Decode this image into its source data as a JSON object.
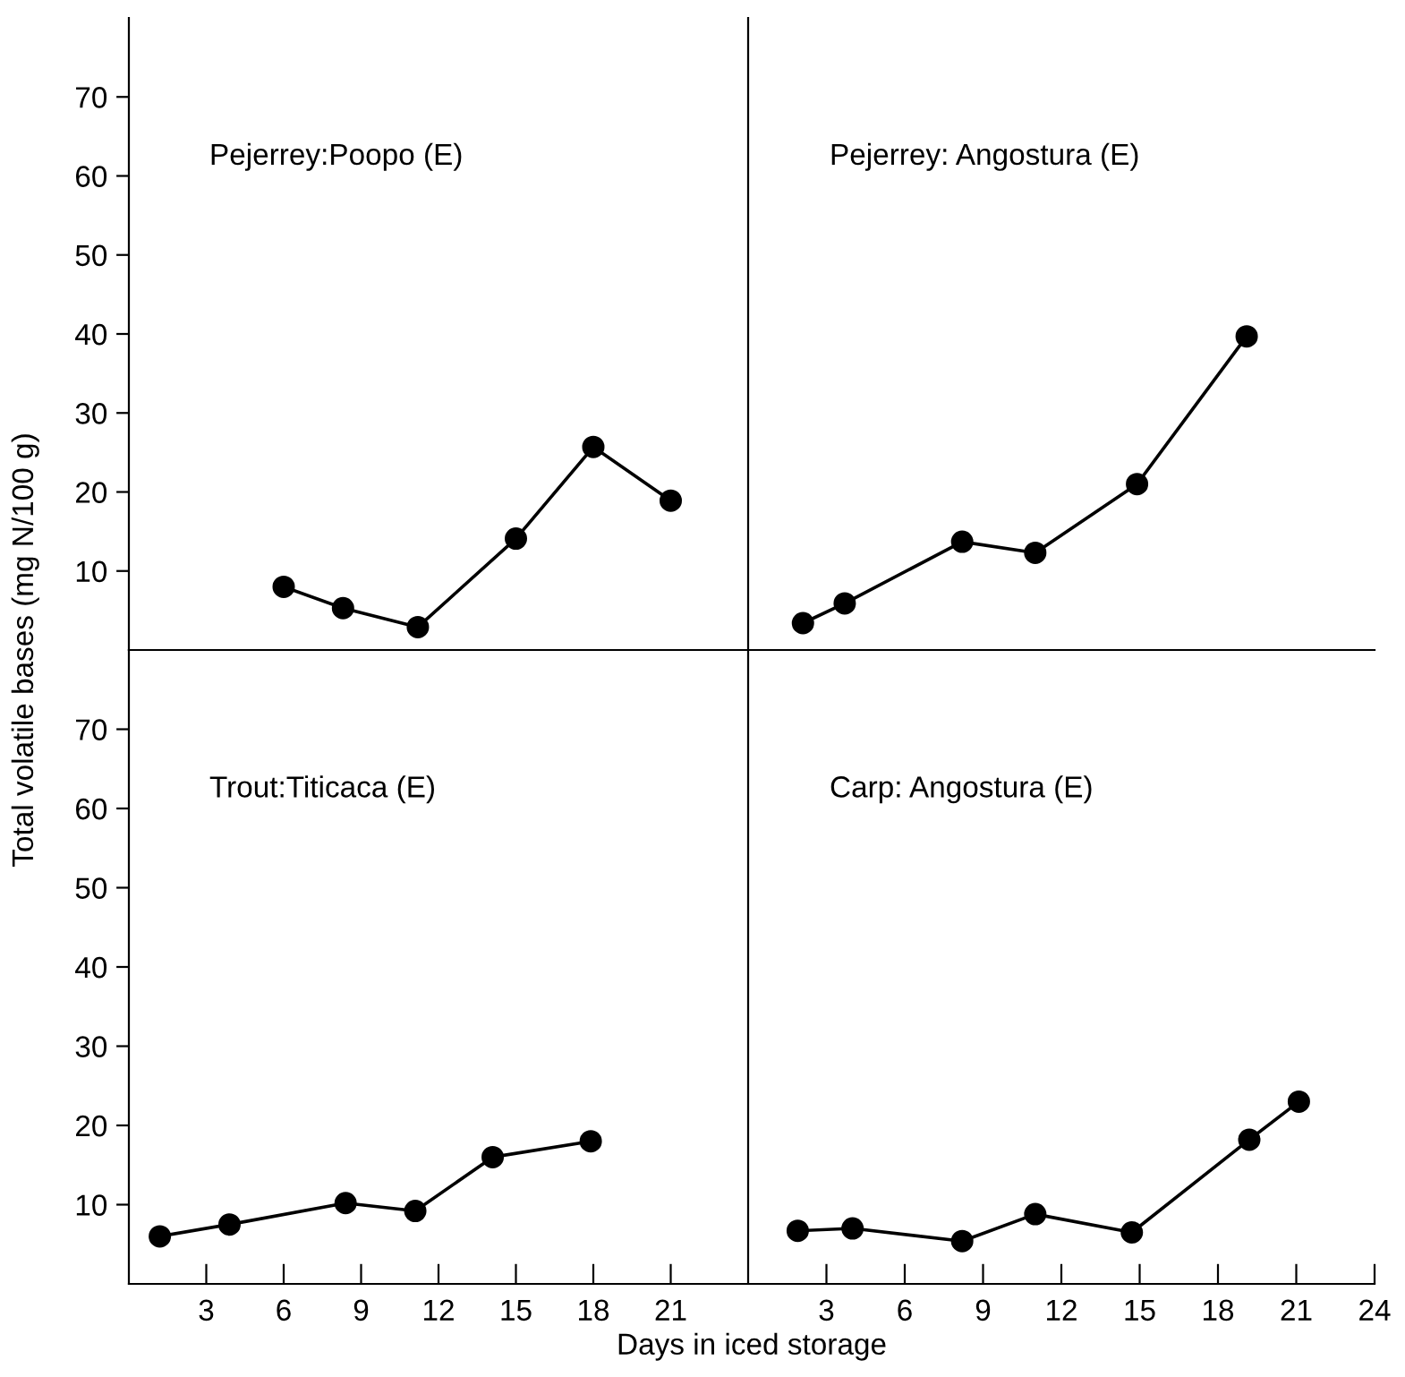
{
  "chart_data": [
    {
      "type": "line",
      "title": "Pejerrey:Poopo (E)",
      "ylabel": "Total volatile bases (mg N/100 g)",
      "x": [
        6,
        8.3,
        11.2,
        15,
        18,
        21
      ],
      "values": [
        8.0,
        5.3,
        2.9,
        14.1,
        25.7,
        18.9
      ],
      "color": "#000000",
      "marker": "circle",
      "line_style": "solid",
      "xlim": [
        0,
        24
      ],
      "ylim": [
        0,
        80
      ],
      "yticks": [
        10,
        20,
        30,
        40,
        50,
        60,
        70
      ],
      "tick_labels": "y"
    },
    {
      "type": "line",
      "title": "Pejerrey: Angostura (E)",
      "x": [
        2.1,
        3.7,
        8.2,
        11.0,
        14.9,
        19.1
      ],
      "values": [
        3.4,
        5.9,
        13.7,
        12.3,
        21.0,
        39.7
      ],
      "color": "#000000",
      "marker": "circle",
      "line_style": "solid",
      "xlim": [
        0,
        24
      ],
      "ylim": [
        0,
        80
      ],
      "tick_labels": false
    },
    {
      "type": "line",
      "title": "Trout:Titicaca (E)",
      "xlabel": "Days in iced storage",
      "x": [
        1.2,
        3.9,
        8.4,
        11.1,
        14.1,
        17.9
      ],
      "values": [
        6.0,
        7.5,
        10.2,
        9.2,
        16.0,
        18.0
      ],
      "color": "#000000",
      "marker": "circle",
      "line_style": "solid",
      "xlim": [
        0,
        24
      ],
      "xticks": [
        3,
        6,
        9,
        12,
        15,
        18,
        21
      ],
      "ylim": [
        0,
        80
      ],
      "yticks": [
        10,
        20,
        30,
        40,
        50,
        60,
        70
      ]
    },
    {
      "type": "line",
      "title": "Carp: Angostura (E)",
      "x": [
        1.9,
        4.0,
        8.2,
        11.0,
        14.7,
        19.2,
        21.1
      ],
      "values": [
        6.7,
        7.0,
        5.4,
        8.8,
        6.5,
        18.2,
        23.0
      ],
      "color": "#000000",
      "marker": "circle",
      "line_style": "solid",
      "xlim": [
        0,
        24
      ],
      "xticks": [
        3,
        6,
        9,
        12,
        15,
        18,
        21,
        24
      ],
      "ylim": [
        0,
        80
      ],
      "tick_labels": "x"
    }
  ]
}
